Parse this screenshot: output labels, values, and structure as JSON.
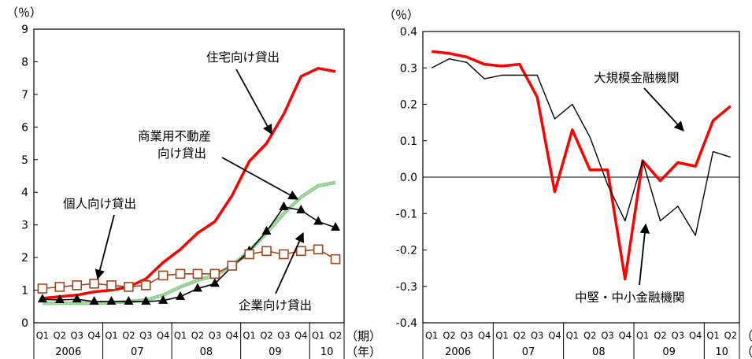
{
  "chart_data": [
    {
      "type": "line",
      "ylabel": "（％）",
      "ylim": [
        0,
        9
      ],
      "yticks": [
        "0",
        "1",
        "2",
        "3",
        "4",
        "5",
        "6",
        "7",
        "8",
        "9"
      ],
      "quarters": [
        "Q1",
        "Q2",
        "Q3",
        "Q4",
        "Q1",
        "Q2",
        "Q3",
        "Q4",
        "Q1",
        "Q2",
        "Q3",
        "Q4",
        "Q1",
        "Q2",
        "Q3",
        "Q4",
        "Q1",
        "Q2"
      ],
      "year_labels": [
        "2006",
        "07",
        "08",
        "09",
        "10"
      ],
      "year_starts": [
        0,
        4,
        8,
        12,
        16
      ],
      "x_unit_label": "（期）",
      "year_unit_label": "（年）",
      "grid": false,
      "series": [
        {
          "name": "住宅向け貸出",
          "color": "#ff0000",
          "marker": "none",
          "values": [
            0.75,
            0.8,
            0.85,
            0.95,
            1.0,
            1.1,
            1.35,
            1.85,
            2.25,
            2.75,
            3.1,
            3.9,
            4.95,
            5.5,
            6.4,
            7.55,
            7.8,
            7.7
          ]
        },
        {
          "name": "商業用不動産向け貸出",
          "color": "#8fcb8f",
          "marker": "none",
          "values": [
            0.6,
            0.6,
            0.6,
            0.6,
            0.62,
            0.65,
            0.7,
            0.85,
            1.1,
            1.3,
            1.45,
            1.75,
            2.2,
            2.75,
            3.35,
            3.85,
            4.2,
            4.3
          ]
        },
        {
          "name": "企業向け貸出",
          "color": "#000000",
          "marker": "triangle",
          "values": [
            0.72,
            0.7,
            0.72,
            0.65,
            0.65,
            0.65,
            0.65,
            0.68,
            0.8,
            1.05,
            1.2,
            1.72,
            2.2,
            2.8,
            3.55,
            3.45,
            3.1,
            2.92
          ]
        },
        {
          "name": "個人向け貸出",
          "color": "#a0461e",
          "marker": "square",
          "values": [
            1.05,
            1.1,
            1.15,
            1.2,
            1.15,
            1.1,
            1.15,
            1.45,
            1.5,
            1.5,
            1.5,
            1.75,
            2.1,
            2.2,
            2.1,
            2.2,
            2.25,
            1.95
          ]
        }
      ],
      "annotations": [
        "住宅向け貸出",
        "商業用不動産",
        "向け貸出",
        "個人向け貸出",
        "企業向け貸出"
      ]
    },
    {
      "type": "line",
      "ylabel": "（％）",
      "ylim": [
        -0.4,
        0.4
      ],
      "yticks": [
        "0.4",
        "0.3",
        "0.2",
        "0.1",
        "0.0",
        "-0.1",
        "-0.2",
        "-0.3",
        "-0.4"
      ],
      "quarters": [
        "Q1",
        "Q2",
        "Q3",
        "Q4",
        "Q1",
        "Q2",
        "Q3",
        "Q4",
        "Q1",
        "Q2",
        "Q3",
        "Q4",
        "Q1",
        "Q2",
        "Q3",
        "Q4",
        "Q1",
        "Q2"
      ],
      "year_labels": [
        "2006",
        "07",
        "08",
        "09",
        "10"
      ],
      "year_starts": [
        0,
        4,
        8,
        12,
        16
      ],
      "x_unit_label": "（期）",
      "year_unit_label": "（年）",
      "grid": false,
      "series": [
        {
          "name": "大規模金融機関",
          "color": "#ff0000",
          "marker": "none",
          "values": [
            0.345,
            0.34,
            0.33,
            0.31,
            0.305,
            0.31,
            0.22,
            -0.04,
            0.13,
            0.02,
            0.02,
            -0.28,
            0.045,
            -0.01,
            0.04,
            0.03,
            0.155,
            0.195
          ]
        },
        {
          "name": "中堅・中小金融機関",
          "color": "#000000",
          "marker": "none",
          "values": [
            0.3,
            0.325,
            0.315,
            0.27,
            0.28,
            0.28,
            0.28,
            0.16,
            0.2,
            0.11,
            -0.02,
            -0.12,
            0.045,
            -0.12,
            -0.08,
            -0.16,
            0.07,
            0.055
          ]
        }
      ],
      "annotations": [
        "大規模金融機関",
        "中堅・中小金融機関"
      ]
    }
  ]
}
